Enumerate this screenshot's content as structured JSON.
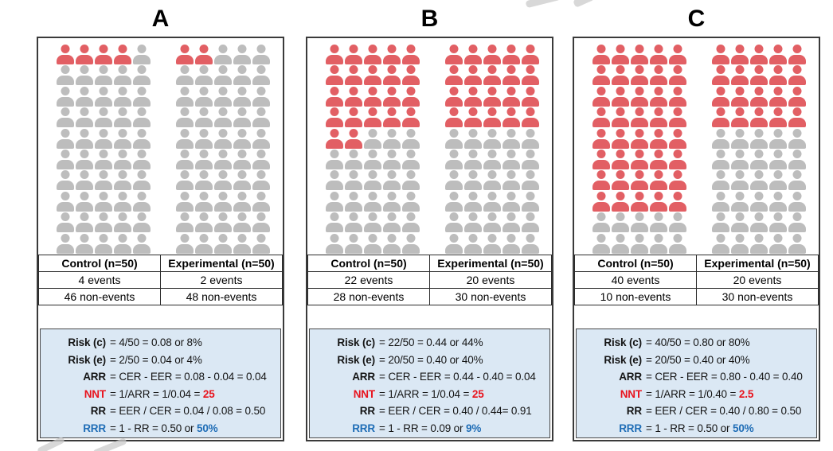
{
  "colors": {
    "event_icon": "#e25f64",
    "non_event_icon": "#bdbdbd",
    "calc_background": "#dbe8f4",
    "nnt_accent": "#e8131d",
    "rrr_accent": "#1f6db6",
    "panel_border": "#3a3a3a"
  },
  "icon_legend": {
    "event": "person-icon (red = event)",
    "non_event": "person-icon (gray = non-event)"
  },
  "chart_data": [
    {
      "type": "icon-array",
      "title": "A",
      "rows_per_group": 10,
      "cols_per_group": 5,
      "groups": [
        {
          "label": "Control (n=50)",
          "n": 50,
          "events": 4,
          "non_events": 46
        },
        {
          "label": "Experimental (n=50)",
          "n": 50,
          "events": 2,
          "non_events": 48
        }
      ],
      "table": {
        "headers": [
          "Control (n=50)",
          "Experimental (n=50)"
        ],
        "rows": [
          [
            "4 events",
            "2 events"
          ],
          [
            "46 non-events",
            "48 non-events"
          ]
        ]
      },
      "calc": [
        {
          "label": "Risk (c)",
          "label_style": "plain",
          "text": "= 4/50 = 0.08 or 8%",
          "highlight": "",
          "highlight_style": ""
        },
        {
          "label": "Risk (e)",
          "label_style": "plain",
          "text": "= 2/50 = 0.04 or 4%",
          "highlight": "",
          "highlight_style": ""
        },
        {
          "label": "ARR",
          "label_style": "plain",
          "text": "= CER - EER = 0.08 - 0.04 = 0.04",
          "highlight": "",
          "highlight_style": ""
        },
        {
          "label": "NNT",
          "label_style": "nnt",
          "text": "= 1/ARR = 1/0.04 = ",
          "highlight": "25",
          "highlight_style": "nnt"
        },
        {
          "label": "RR",
          "label_style": "plain",
          "text": "= EER / CER = 0.04 / 0.08 = 0.50",
          "highlight": "",
          "highlight_style": ""
        },
        {
          "label": "RRR",
          "label_style": "rrr",
          "text": "= 1 - RR = 0.50 or ",
          "highlight": "50%",
          "highlight_style": "rrr"
        }
      ]
    },
    {
      "type": "icon-array",
      "title": "B",
      "rows_per_group": 10,
      "cols_per_group": 5,
      "groups": [
        {
          "label": "Control (n=50)",
          "n": 50,
          "events": 22,
          "non_events": 28
        },
        {
          "label": "Experimental (n=50)",
          "n": 50,
          "events": 20,
          "non_events": 30
        }
      ],
      "table": {
        "headers": [
          "Control (n=50)",
          "Experimental (n=50)"
        ],
        "rows": [
          [
            "22 events",
            "20 events"
          ],
          [
            "28 non-events",
            "30 non-events"
          ]
        ]
      },
      "calc": [
        {
          "label": "Risk (c)",
          "label_style": "plain",
          "text": "= 22/50 = 0.44 or 44%",
          "highlight": "",
          "highlight_style": ""
        },
        {
          "label": "Risk (e)",
          "label_style": "plain",
          "text": "= 20/50 = 0.40 or 40%",
          "highlight": "",
          "highlight_style": ""
        },
        {
          "label": "ARR",
          "label_style": "plain",
          "text": "= CER - EER = 0.44 - 0.40 = 0.04",
          "highlight": "",
          "highlight_style": ""
        },
        {
          "label": "NNT",
          "label_style": "nnt",
          "text": "= 1/ARR = 1/0.04 = ",
          "highlight": "25",
          "highlight_style": "nnt"
        },
        {
          "label": "RR",
          "label_style": "plain",
          "text": "= EER / CER = 0.40 / 0.44= 0.91",
          "highlight": "",
          "highlight_style": ""
        },
        {
          "label": "RRR",
          "label_style": "rrr",
          "text": "= 1 - RR = 0.09 or ",
          "highlight": "9%",
          "highlight_style": "rrr"
        }
      ]
    },
    {
      "type": "icon-array",
      "title": "C",
      "rows_per_group": 10,
      "cols_per_group": 5,
      "groups": [
        {
          "label": "Control (n=50)",
          "n": 50,
          "events": 40,
          "non_events": 10
        },
        {
          "label": "Experimental (n=50)",
          "n": 50,
          "events": 20,
          "non_events": 30
        }
      ],
      "table": {
        "headers": [
          "Control (n=50)",
          "Experimental (n=50)"
        ],
        "rows": [
          [
            "40 events",
            "20 events"
          ],
          [
            "10 non-events",
            "30 non-events"
          ]
        ]
      },
      "calc": [
        {
          "label": "Risk (c)",
          "label_style": "plain",
          "text": "= 40/50 = 0.80 or 80%",
          "highlight": "",
          "highlight_style": ""
        },
        {
          "label": "Risk (e)",
          "label_style": "plain",
          "text": "= 20/50 = 0.40 or 40%",
          "highlight": "",
          "highlight_style": ""
        },
        {
          "label": "ARR",
          "label_style": "plain",
          "text": "= CER - EER = 0.80 - 0.40 = 0.40",
          "highlight": "",
          "highlight_style": ""
        },
        {
          "label": "NNT",
          "label_style": "nnt",
          "text": "= 1/ARR = 1/0.40 = ",
          "highlight": "2.5",
          "highlight_style": "nnt"
        },
        {
          "label": "RR",
          "label_style": "plain",
          "text": "= EER / CER = 0.40 / 0.80 = 0.50",
          "highlight": "",
          "highlight_style": ""
        },
        {
          "label": "RRR",
          "label_style": "rrr",
          "text": "= 1 - RR = 0.50 or ",
          "highlight": "50%",
          "highlight_style": "rrr"
        }
      ]
    }
  ]
}
